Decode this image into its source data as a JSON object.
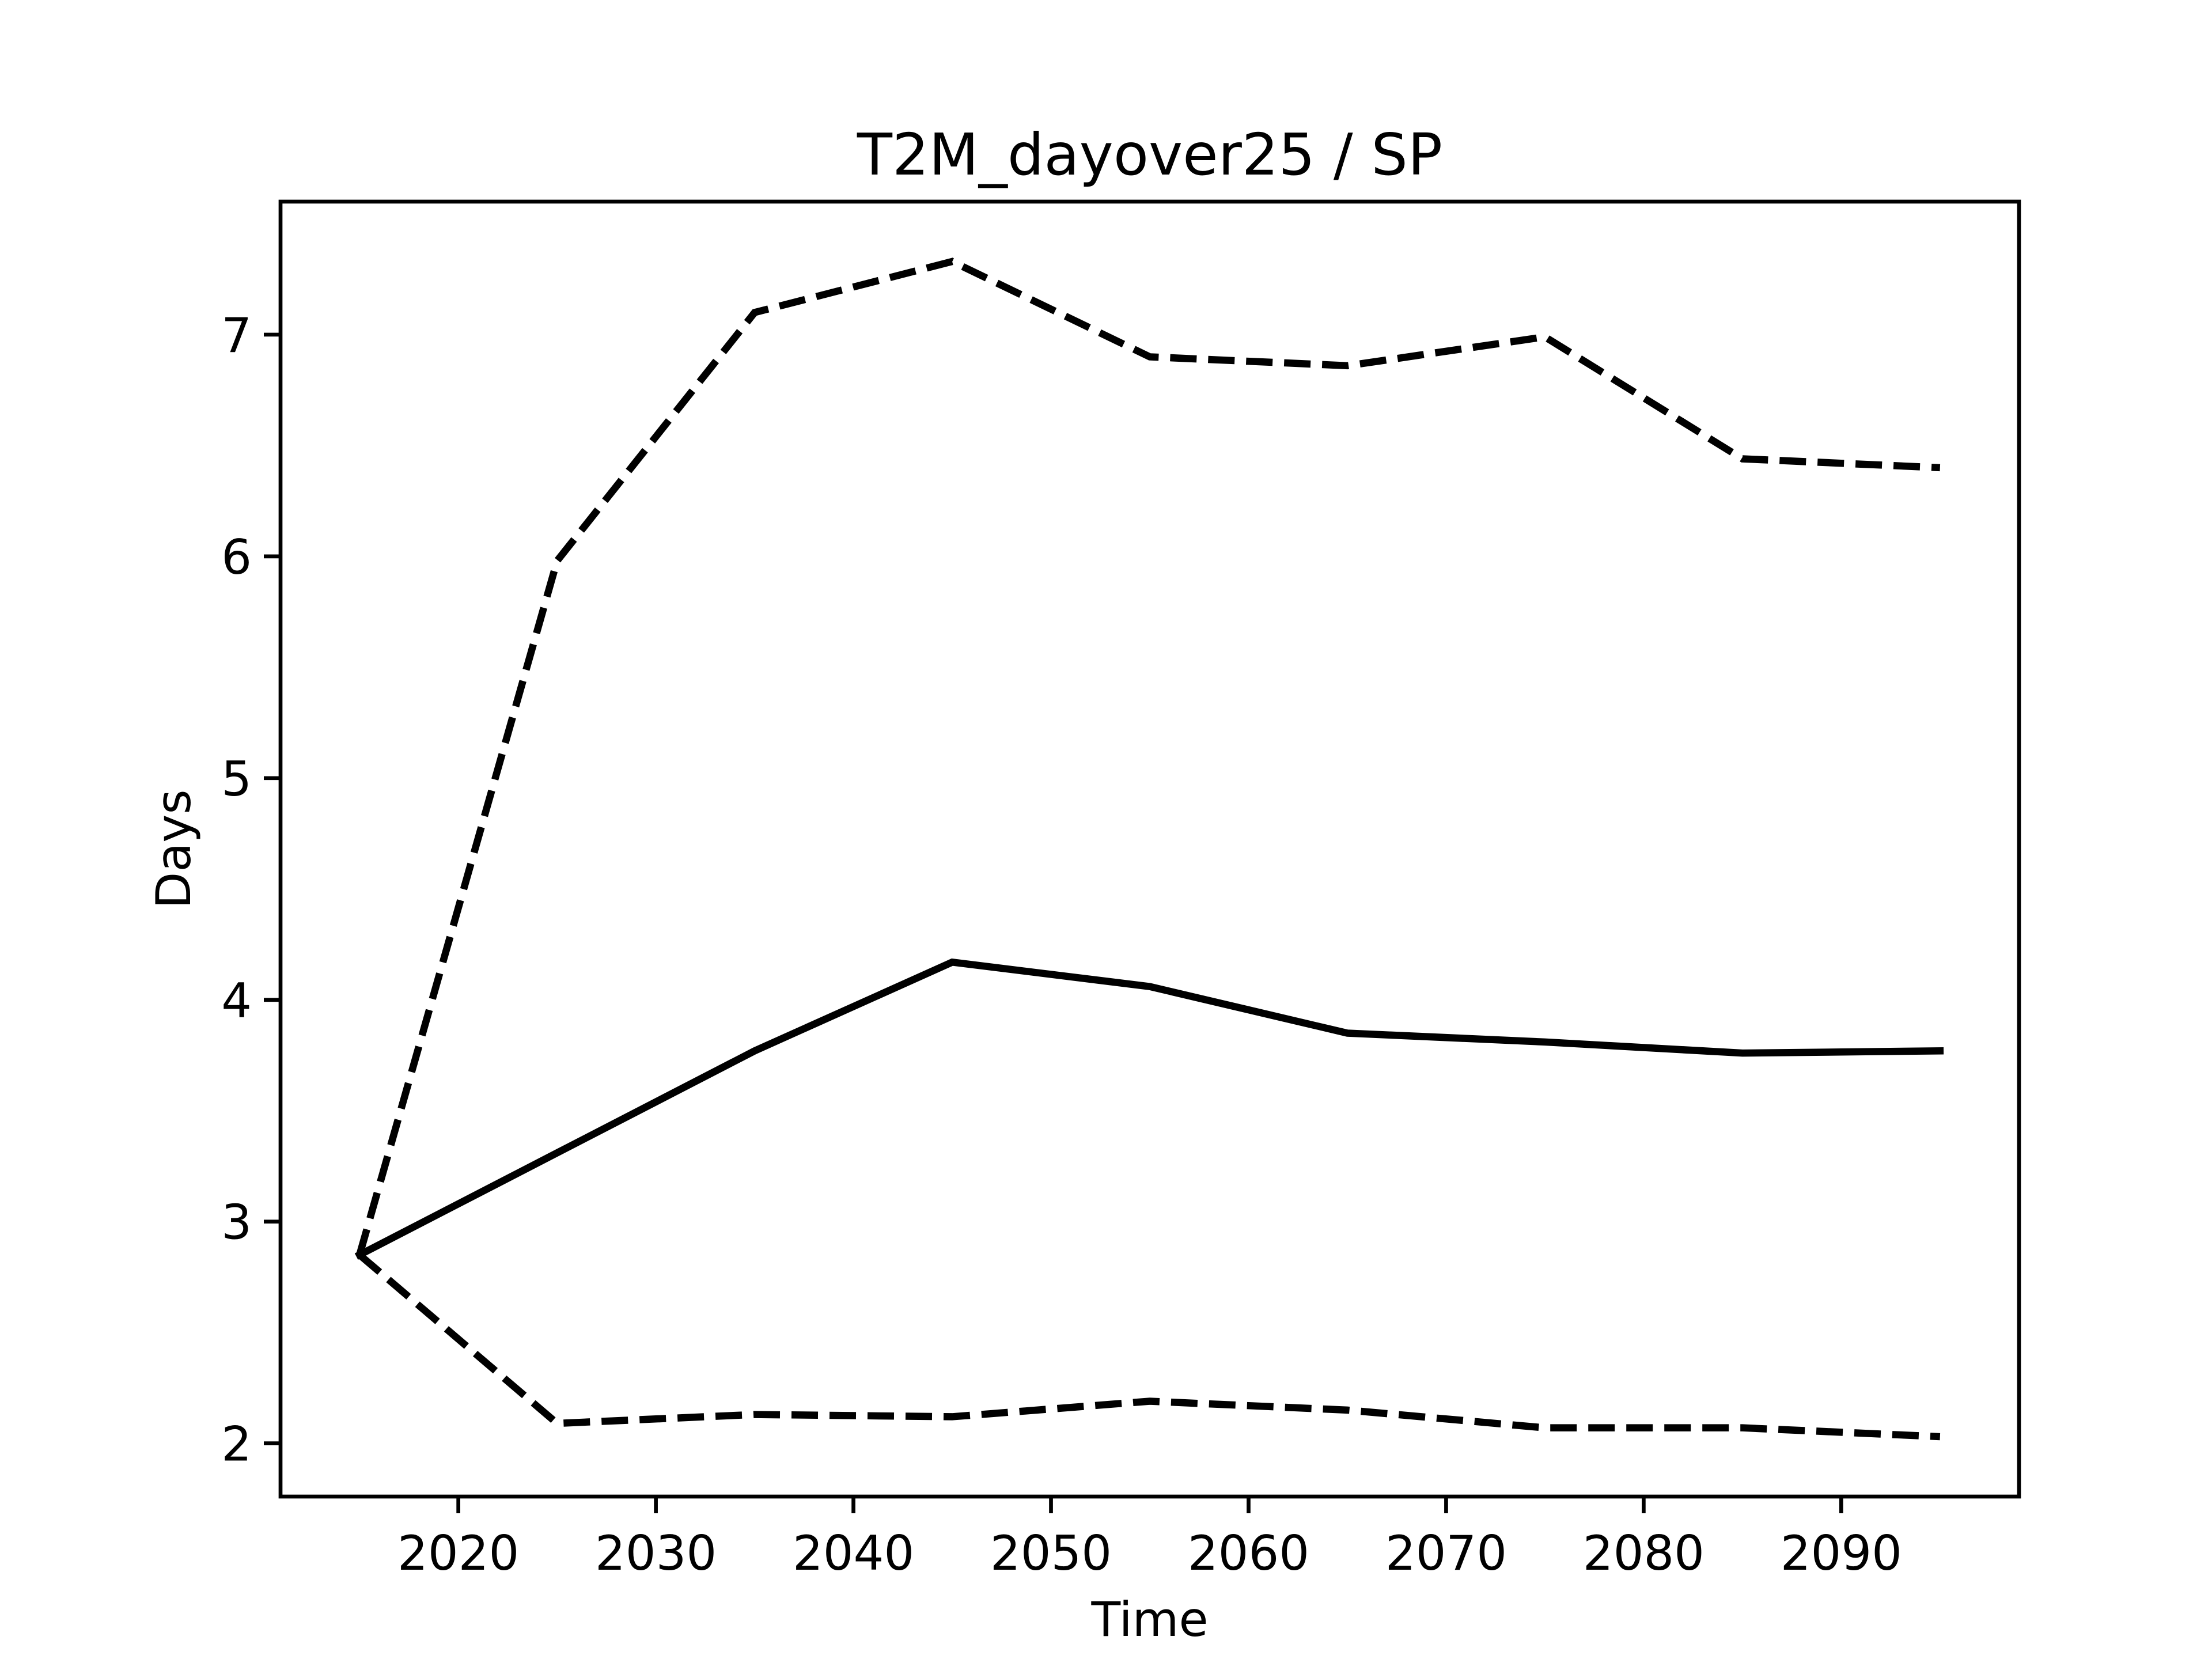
{
  "chart_data": {
    "type": "line",
    "title": "T2M_dayover25 / SP",
    "xlabel": "Time",
    "ylabel": "Days",
    "x": [
      2015,
      2025,
      2035,
      2045,
      2055,
      2065,
      2075,
      2085,
      2095
    ],
    "series": [
      {
        "color": "#000000",
        "style": "solid",
        "values": [
          2.85,
          3.31,
          3.77,
          4.17,
          4.06,
          3.85,
          3.81,
          3.76,
          3.77
        ]
      },
      {
        "color": "#000000",
        "style": "dashed",
        "values": [
          2.85,
          5.98,
          7.1,
          7.33,
          6.9,
          6.86,
          6.99,
          6.44,
          6.4
        ]
      },
      {
        "color": "#000000",
        "style": "dashed",
        "values": [
          2.85,
          2.09,
          2.13,
          2.12,
          2.19,
          2.15,
          2.07,
          2.07,
          2.03
        ]
      }
    ],
    "xlim": [
      2011,
      2099
    ],
    "xticks": [
      2020,
      2030,
      2040,
      2050,
      2060,
      2070,
      2080,
      2090
    ],
    "ylim": [
      1.76,
      7.6
    ],
    "yticks": [
      2,
      3,
      4,
      5,
      6,
      7
    ],
    "grid": false
  }
}
